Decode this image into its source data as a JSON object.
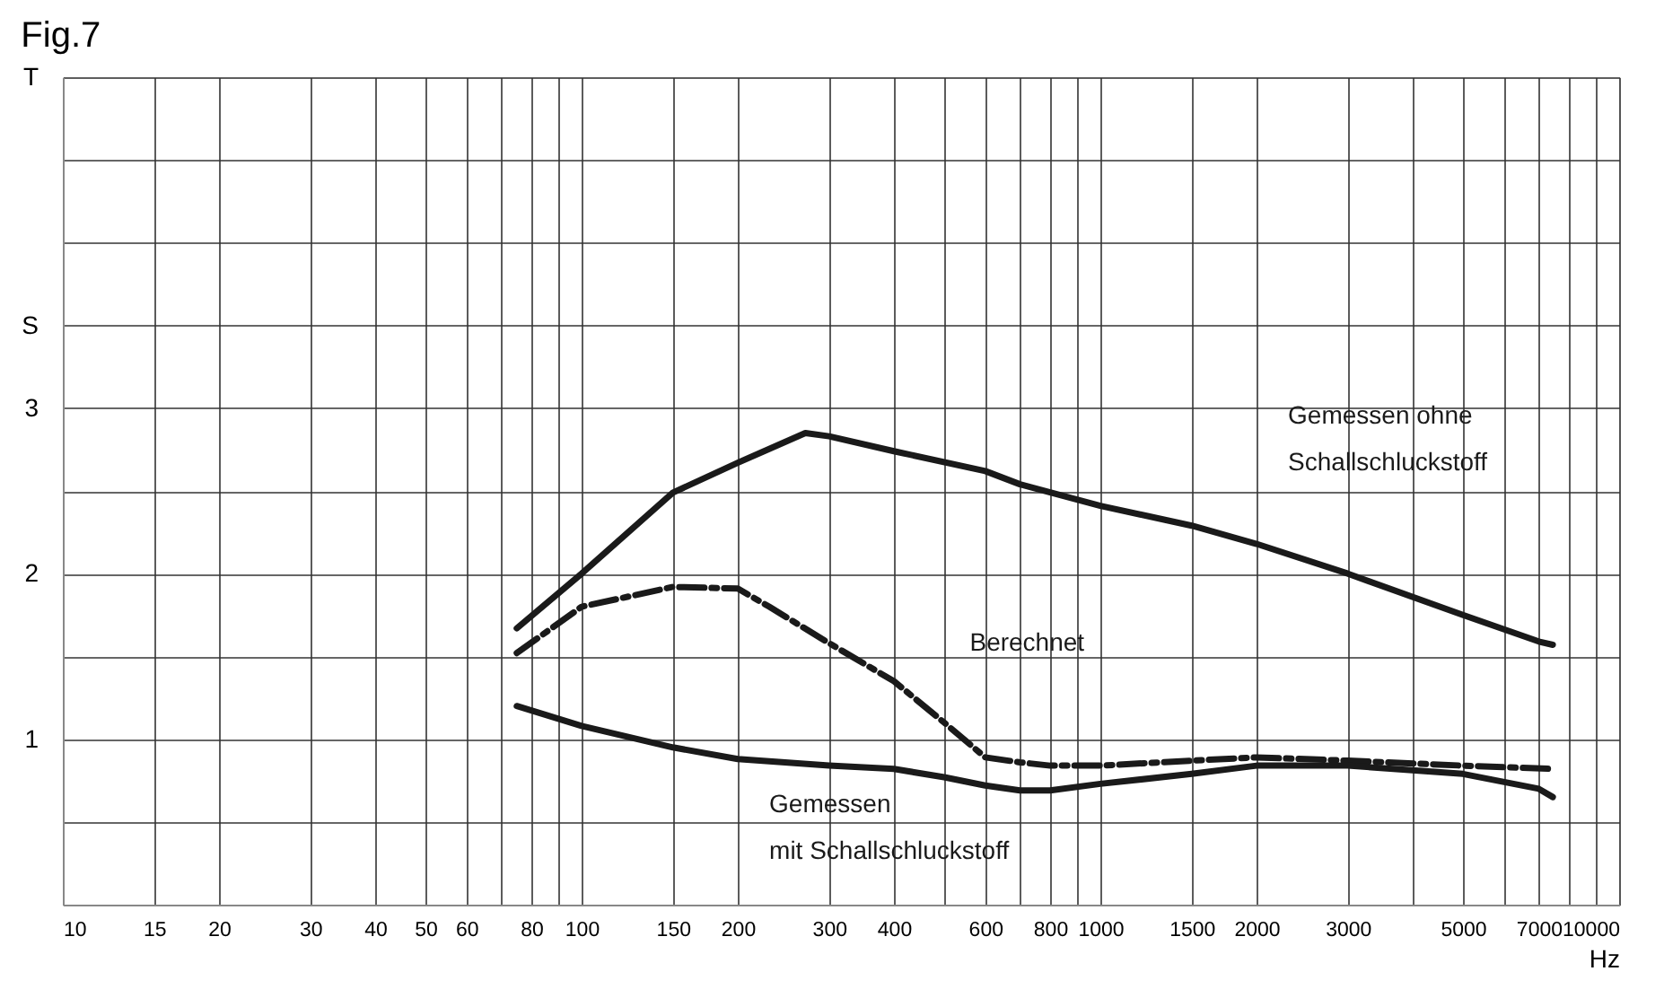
{
  "chart_data": {
    "type": "line",
    "title": "Fig.7",
    "xlabel": "Hz",
    "log": "x",
    "grid": true,
    "xlim": [
      10,
      10000
    ],
    "ylim": [
      0,
      5
    ],
    "xticks": [
      10,
      15,
      20,
      30,
      40,
      50,
      60,
      {
        "value": 70,
        "label": null
      },
      80,
      {
        "value": 90,
        "label": null
      },
      100,
      150,
      200,
      300,
      400,
      {
        "value": 500,
        "label": null
      },
      600,
      {
        "value": 700,
        "label": null
      },
      800,
      {
        "value": 900,
        "label": null
      },
      1000,
      1500,
      2000,
      3000,
      {
        "value": 4000,
        "label": null
      },
      5000,
      {
        "value": 6000,
        "label": null
      },
      7000,
      {
        "value": 8000,
        "label": null
      },
      {
        "value": 9000,
        "label": null
      },
      10000
    ],
    "yticks": [
      {
        "value": 0.5,
        "label": null
      },
      1,
      {
        "value": 1.5,
        "label": null
      },
      2,
      {
        "value": 2.5,
        "label": null
      },
      3,
      {
        "value": 3.5,
        "label": "S"
      },
      {
        "value": 4,
        "label": null
      },
      {
        "value": 4.5,
        "label": null
      },
      {
        "value": 5,
        "label": "T"
      }
    ],
    "series": [
      {
        "name": "Gemessen ohne Schallschluckstoff",
        "color": "#1a1a1a",
        "line_style": "solid",
        "x": [
          75,
          100,
          150,
          200,
          270,
          300,
          400,
          600,
          700,
          1000,
          1500,
          2000,
          3000,
          5000,
          7000,
          7450
        ],
        "values": [
          1.67,
          2.0,
          2.49,
          2.67,
          2.85,
          2.83,
          2.74,
          2.62,
          2.54,
          2.41,
          2.29,
          2.18,
          2.0,
          1.75,
          1.59,
          1.57
        ]
      },
      {
        "name": "Berechnet",
        "color": "#1a1a1a",
        "line_style": "dashed",
        "x": [
          75,
          100,
          150,
          200,
          230,
          300,
          400,
          500,
          600,
          700,
          800,
          1000,
          1500,
          2000,
          3000,
          5000,
          7450
        ],
        "values": [
          1.52,
          1.8,
          1.92,
          1.91,
          1.8,
          1.58,
          1.35,
          1.1,
          0.89,
          0.86,
          0.84,
          0.84,
          0.87,
          0.89,
          0.87,
          0.84,
          0.82
        ]
      },
      {
        "name": "Gemessen mit Schallschluckstoff",
        "color": "#1a1a1a",
        "line_style": "solid",
        "x": [
          75,
          100,
          150,
          200,
          300,
          400,
          500,
          600,
          700,
          800,
          1000,
          1500,
          2000,
          3000,
          5000,
          7000,
          7450
        ],
        "values": [
          1.2,
          1.08,
          0.95,
          0.88,
          0.84,
          0.82,
          0.77,
          0.72,
          0.69,
          0.69,
          0.73,
          0.79,
          0.84,
          0.84,
          0.79,
          0.7,
          0.65
        ]
      }
    ]
  }
}
